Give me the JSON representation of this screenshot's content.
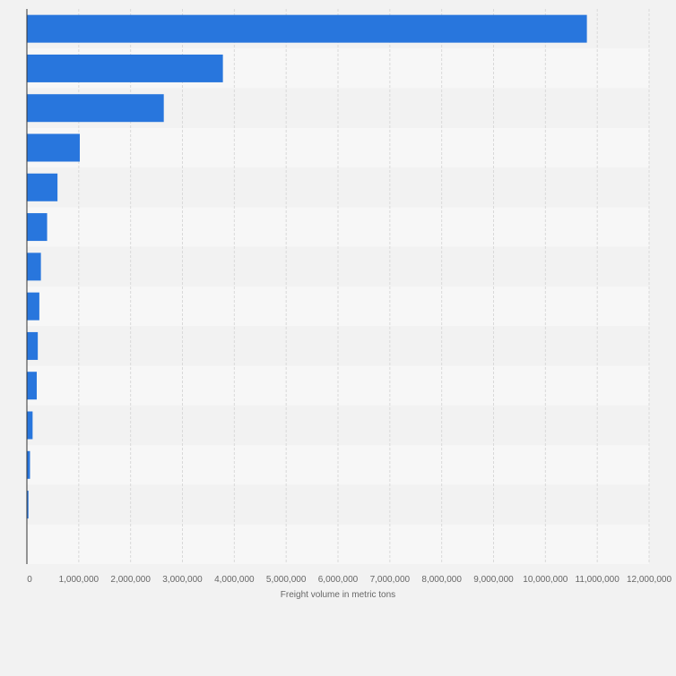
{
  "chart_data": {
    "type": "bar",
    "orientation": "horizontal",
    "title": "",
    "xlabel": "Freight volume in metric tons",
    "ylabel": "",
    "xlim": [
      0,
      12000000
    ],
    "x_ticks": [
      0,
      1000000,
      2000000,
      3000000,
      4000000,
      5000000,
      6000000,
      7000000,
      8000000,
      9000000,
      10000000,
      11000000,
      12000000
    ],
    "x_tick_labels": [
      "0",
      "1,000,000",
      "2,000,000",
      "3,000,000",
      "4,000,000",
      "5,000,000",
      "6,000,000",
      "7,000,000",
      "8,000,000",
      "9,000,000",
      "10,000,000",
      "11,000,000",
      "12,000,000"
    ],
    "categories": [
      "",
      "",
      "",
      "",
      "",
      "",
      "",
      "",
      "",
      "",
      "",
      "",
      "",
      ""
    ],
    "values": [
      10800000,
      3780000,
      2640000,
      1020000,
      590000,
      390000,
      270000,
      240000,
      210000,
      190000,
      110000,
      60000,
      30000,
      0
    ],
    "grid": true,
    "legend": "none",
    "colors": {
      "bar": "#2876dd",
      "background": "#f2f2f2",
      "band_dark": "#f2f2f2",
      "band_light": "#f7f7f7",
      "grid": "#d9d9d9",
      "axis": "#333333",
      "text": "#666666"
    }
  }
}
